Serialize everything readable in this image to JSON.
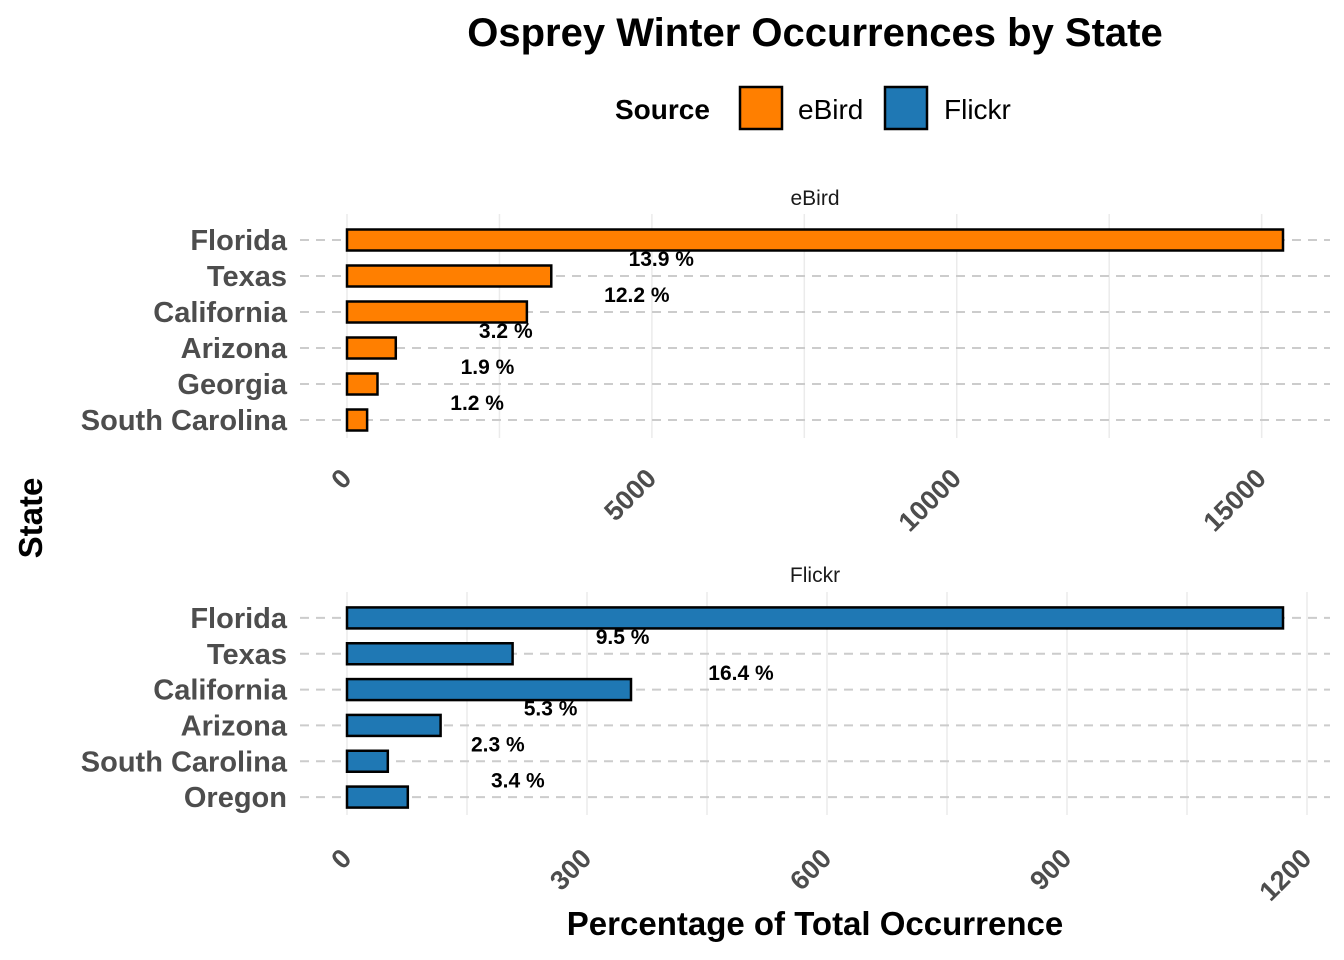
{
  "chart_data": {
    "type": "bar",
    "orientation": "horizontal",
    "title": "Osprey Winter Occurrences by State",
    "xlabel": "Percentage of Total Occurrence",
    "ylabel": "State",
    "legend": {
      "title": "Source",
      "position": "top",
      "entries": [
        {
          "name": "eBird",
          "color": "#FF7F00"
        },
        {
          "name": "Flickr",
          "color": "#1F78B4"
        }
      ]
    },
    "grid": true,
    "panels": [
      {
        "name": "eBird",
        "color": "#FF7F00",
        "categories": [
          "Florida",
          "Texas",
          "California",
          "Arizona",
          "Georgia",
          "South Carolina"
        ],
        "values": [
          15350,
          3350,
          2950,
          800,
          500,
          330
        ],
        "labels": [
          "13.9 %",
          "12.2 %",
          "3.2 %",
          "1.9 %",
          "1.2 %"
        ],
        "xlim": [
          0,
          16000
        ],
        "xticks": [
          0,
          5000,
          10000,
          15000
        ],
        "xtick_labels": [
          "0",
          "5000",
          "10000",
          "15000"
        ]
      },
      {
        "name": "Flickr",
        "color": "#1F78B4",
        "categories": [
          "Florida",
          "Texas",
          "California",
          "Arizona",
          "South Carolina",
          "Oregon"
        ],
        "values": [
          1170,
          207,
          355,
          117,
          51,
          76
        ],
        "labels": [
          "9.5 %",
          "16.4 %",
          "5.3 %",
          "2.3 %",
          "3.4 %"
        ],
        "xlim": [
          0,
          1230
        ],
        "xticks": [
          0,
          300,
          600,
          900,
          1200
        ],
        "xtick_labels": [
          "0",
          "300",
          "600",
          "900",
          "1200"
        ]
      }
    ]
  }
}
